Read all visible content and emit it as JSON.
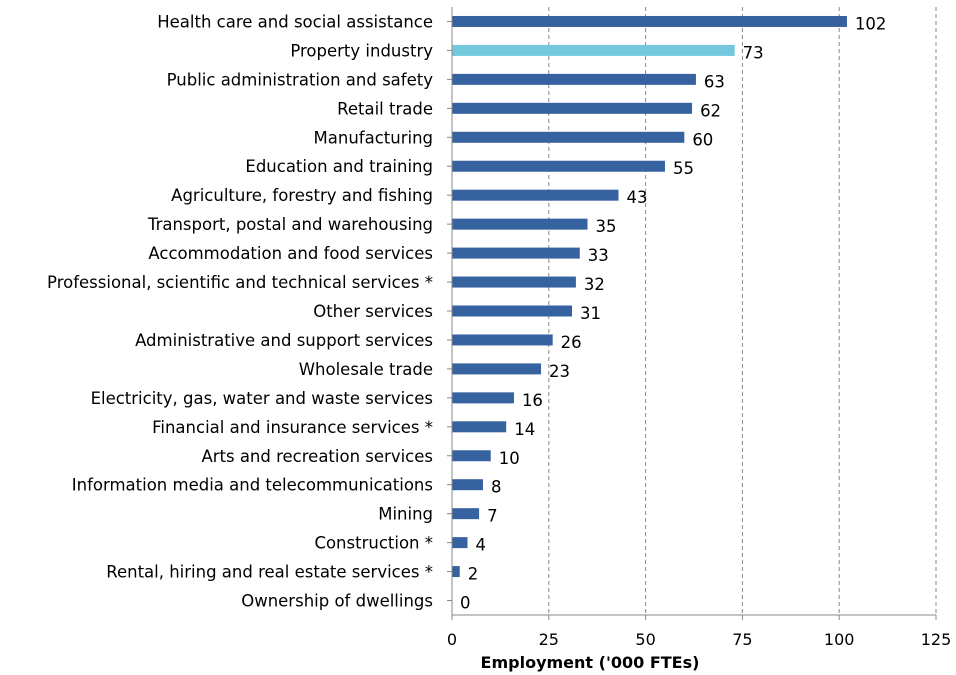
{
  "chart_data": {
    "type": "bar",
    "orientation": "horizontal",
    "categories": [
      "Health care and social assistance",
      "Property industry",
      "Public administration and safety",
      "Retail trade",
      "Manufacturing",
      "Education and training",
      "Agriculture, forestry and fishing",
      "Transport, postal and warehousing",
      "Accommodation and food services",
      "Professional, scientific and technical services *",
      "Other services",
      "Administrative and support services",
      "Wholesale trade",
      "Electricity, gas, water and waste services",
      "Financial and insurance services *",
      "Arts and recreation services",
      "Information media and telecommunications",
      "Mining",
      "Construction *",
      "Rental, hiring and real estate services *",
      "Ownership of dwellings"
    ],
    "values": [
      102,
      73,
      63,
      62,
      60,
      55,
      43,
      35,
      33,
      32,
      31,
      26,
      23,
      16,
      14,
      10,
      8,
      7,
      4,
      2,
      0
    ],
    "value_labels": [
      "102",
      "73",
      "63",
      "62",
      "60",
      "55",
      "43",
      "35",
      "33",
      "32",
      "31",
      "26",
      "23",
      "16",
      "14",
      "10",
      "8",
      "7",
      "4",
      "2",
      "0"
    ],
    "highlight_index": 1,
    "xlabel": "Employment ('000 FTEs)",
    "ylabel": "",
    "xlim": [
      0,
      125
    ],
    "xticks": [
      0,
      25,
      50,
      75,
      100,
      125
    ],
    "xtick_labels": [
      "0",
      "25",
      "50",
      "75",
      "100",
      "125"
    ],
    "grid": "vertical dashed",
    "legend": "none",
    "colors": {
      "bar": "#3762a0",
      "highlight": "#74c8dd",
      "grid": "#888888",
      "axis": "#888888"
    }
  }
}
